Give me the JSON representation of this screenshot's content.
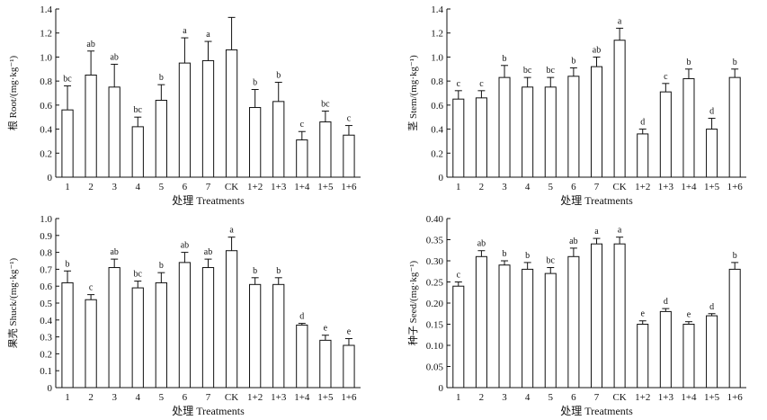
{
  "chart_data": [
    {
      "type": "bar",
      "xlabel": "处理 Treatments",
      "ylabel": "根 Root/(mg·kg⁻¹)",
      "ylim": [
        0,
        1.4
      ],
      "yticks": [
        0,
        0.2,
        0.4,
        0.6,
        0.8,
        1.0,
        1.2,
        1.4
      ],
      "categories": [
        "1",
        "2",
        "3",
        "4",
        "5",
        "6",
        "7",
        "CK",
        "1+2",
        "1+3",
        "1+4",
        "1+5",
        "1+6"
      ],
      "values": [
        0.56,
        0.85,
        0.75,
        0.42,
        0.64,
        0.95,
        0.97,
        1.06,
        0.58,
        0.63,
        0.31,
        0.46,
        0.35
      ],
      "errors": [
        0.2,
        0.2,
        0.19,
        0.08,
        0.13,
        0.21,
        0.16,
        0.27,
        0.15,
        0.16,
        0.07,
        0.09,
        0.08
      ],
      "labels": [
        "bc",
        "ab",
        "ab",
        "bc",
        "b",
        "a",
        "a",
        "",
        "b",
        "b",
        "c",
        "bc",
        "c"
      ]
    },
    {
      "type": "bar",
      "xlabel": "处理 Treatments",
      "ylabel": "茎 Stem/(mg·kg⁻¹)",
      "ylim": [
        0,
        1.4
      ],
      "yticks": [
        0,
        0.2,
        0.4,
        0.6,
        0.8,
        1.0,
        1.2,
        1.4
      ],
      "categories": [
        "1",
        "2",
        "3",
        "4",
        "5",
        "6",
        "7",
        "CK",
        "1+2",
        "1+3",
        "1+4",
        "1+5",
        "1+6"
      ],
      "values": [
        0.65,
        0.66,
        0.83,
        0.75,
        0.75,
        0.84,
        0.92,
        1.14,
        0.36,
        0.71,
        0.82,
        0.4,
        0.83
      ],
      "errors": [
        0.07,
        0.06,
        0.1,
        0.08,
        0.08,
        0.07,
        0.08,
        0.1,
        0.04,
        0.07,
        0.08,
        0.09,
        0.07
      ],
      "labels": [
        "c",
        "c",
        "b",
        "bc",
        "bc",
        "b",
        "ab",
        "a",
        "d",
        "c",
        "b",
        "d",
        "b"
      ]
    },
    {
      "type": "bar",
      "xlabel": "处理 Treatments",
      "ylabel": "果壳 Shuck/(mg·kg⁻¹)",
      "ylim": [
        0,
        1.0
      ],
      "yticks": [
        0,
        0.1,
        0.2,
        0.3,
        0.4,
        0.5,
        0.6,
        0.7,
        0.8,
        0.9,
        1.0
      ],
      "categories": [
        "1",
        "2",
        "3",
        "4",
        "5",
        "6",
        "7",
        "CK",
        "1+2",
        "1+3",
        "1+4",
        "1+5",
        "1+6"
      ],
      "values": [
        0.62,
        0.52,
        0.71,
        0.59,
        0.62,
        0.74,
        0.71,
        0.81,
        0.61,
        0.61,
        0.37,
        0.28,
        0.25
      ],
      "errors": [
        0.07,
        0.03,
        0.05,
        0.04,
        0.06,
        0.06,
        0.05,
        0.08,
        0.04,
        0.04,
        0.01,
        0.03,
        0.04
      ],
      "labels": [
        "b",
        "c",
        "ab",
        "bc",
        "b",
        "ab",
        "ab",
        "a",
        "b",
        "b",
        "d",
        "e",
        "e"
      ]
    },
    {
      "type": "bar",
      "xlabel": "处理 Treatments",
      "ylabel": "种子 Seed/(mg·kg⁻¹)",
      "ylim": [
        0,
        0.4
      ],
      "yticks": [
        0,
        0.05,
        0.1,
        0.15,
        0.2,
        0.25,
        0.3,
        0.35,
        0.4
      ],
      "categories": [
        "1",
        "2",
        "3",
        "4",
        "5",
        "6",
        "7",
        "CK",
        "1+2",
        "1+3",
        "1+4",
        "1+5",
        "1+6"
      ],
      "values": [
        0.24,
        0.31,
        0.29,
        0.28,
        0.27,
        0.31,
        0.34,
        0.34,
        0.15,
        0.18,
        0.15,
        0.17,
        0.28
      ],
      "errors": [
        0.01,
        0.014,
        0.01,
        0.016,
        0.014,
        0.02,
        0.013,
        0.016,
        0.008,
        0.007,
        0.006,
        0.005,
        0.016
      ],
      "labels": [
        "c",
        "ab",
        "b",
        "b",
        "bc",
        "ab",
        "a",
        "a",
        "e",
        "d",
        "e",
        "d",
        "b"
      ]
    }
  ]
}
